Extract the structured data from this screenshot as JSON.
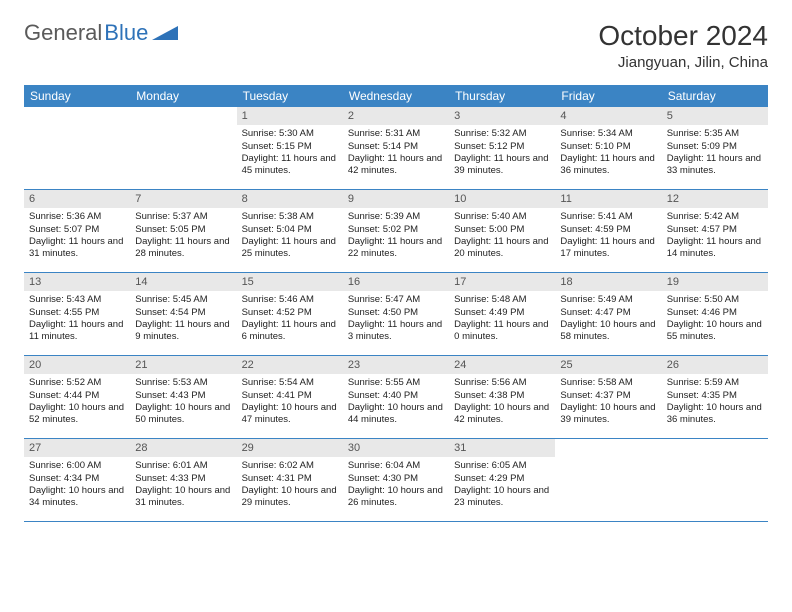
{
  "brand": {
    "part1": "General",
    "part2": "Blue"
  },
  "title": "October 2024",
  "location": "Jiangyuan, Jilin, China",
  "colors": {
    "header_bg": "#3b84c4",
    "header_fg": "#ffffff",
    "daynum_bg": "#e8e8e8",
    "daynum_fg": "#555555",
    "border": "#3b84c4",
    "logo_gray": "#5a5a5a",
    "logo_blue": "#2e72b8"
  },
  "day_names": [
    "Sunday",
    "Monday",
    "Tuesday",
    "Wednesday",
    "Thursday",
    "Friday",
    "Saturday"
  ],
  "weeks": [
    [
      null,
      null,
      {
        "n": "1",
        "sr": "5:30 AM",
        "ss": "5:15 PM",
        "dl": "11 hours and 45 minutes."
      },
      {
        "n": "2",
        "sr": "5:31 AM",
        "ss": "5:14 PM",
        "dl": "11 hours and 42 minutes."
      },
      {
        "n": "3",
        "sr": "5:32 AM",
        "ss": "5:12 PM",
        "dl": "11 hours and 39 minutes."
      },
      {
        "n": "4",
        "sr": "5:34 AM",
        "ss": "5:10 PM",
        "dl": "11 hours and 36 minutes."
      },
      {
        "n": "5",
        "sr": "5:35 AM",
        "ss": "5:09 PM",
        "dl": "11 hours and 33 minutes."
      }
    ],
    [
      {
        "n": "6",
        "sr": "5:36 AM",
        "ss": "5:07 PM",
        "dl": "11 hours and 31 minutes."
      },
      {
        "n": "7",
        "sr": "5:37 AM",
        "ss": "5:05 PM",
        "dl": "11 hours and 28 minutes."
      },
      {
        "n": "8",
        "sr": "5:38 AM",
        "ss": "5:04 PM",
        "dl": "11 hours and 25 minutes."
      },
      {
        "n": "9",
        "sr": "5:39 AM",
        "ss": "5:02 PM",
        "dl": "11 hours and 22 minutes."
      },
      {
        "n": "10",
        "sr": "5:40 AM",
        "ss": "5:00 PM",
        "dl": "11 hours and 20 minutes."
      },
      {
        "n": "11",
        "sr": "5:41 AM",
        "ss": "4:59 PM",
        "dl": "11 hours and 17 minutes."
      },
      {
        "n": "12",
        "sr": "5:42 AM",
        "ss": "4:57 PM",
        "dl": "11 hours and 14 minutes."
      }
    ],
    [
      {
        "n": "13",
        "sr": "5:43 AM",
        "ss": "4:55 PM",
        "dl": "11 hours and 11 minutes."
      },
      {
        "n": "14",
        "sr": "5:45 AM",
        "ss": "4:54 PM",
        "dl": "11 hours and 9 minutes."
      },
      {
        "n": "15",
        "sr": "5:46 AM",
        "ss": "4:52 PM",
        "dl": "11 hours and 6 minutes."
      },
      {
        "n": "16",
        "sr": "5:47 AM",
        "ss": "4:50 PM",
        "dl": "11 hours and 3 minutes."
      },
      {
        "n": "17",
        "sr": "5:48 AM",
        "ss": "4:49 PM",
        "dl": "11 hours and 0 minutes."
      },
      {
        "n": "18",
        "sr": "5:49 AM",
        "ss": "4:47 PM",
        "dl": "10 hours and 58 minutes."
      },
      {
        "n": "19",
        "sr": "5:50 AM",
        "ss": "4:46 PM",
        "dl": "10 hours and 55 minutes."
      }
    ],
    [
      {
        "n": "20",
        "sr": "5:52 AM",
        "ss": "4:44 PM",
        "dl": "10 hours and 52 minutes."
      },
      {
        "n": "21",
        "sr": "5:53 AM",
        "ss": "4:43 PM",
        "dl": "10 hours and 50 minutes."
      },
      {
        "n": "22",
        "sr": "5:54 AM",
        "ss": "4:41 PM",
        "dl": "10 hours and 47 minutes."
      },
      {
        "n": "23",
        "sr": "5:55 AM",
        "ss": "4:40 PM",
        "dl": "10 hours and 44 minutes."
      },
      {
        "n": "24",
        "sr": "5:56 AM",
        "ss": "4:38 PM",
        "dl": "10 hours and 42 minutes."
      },
      {
        "n": "25",
        "sr": "5:58 AM",
        "ss": "4:37 PM",
        "dl": "10 hours and 39 minutes."
      },
      {
        "n": "26",
        "sr": "5:59 AM",
        "ss": "4:35 PM",
        "dl": "10 hours and 36 minutes."
      }
    ],
    [
      {
        "n": "27",
        "sr": "6:00 AM",
        "ss": "4:34 PM",
        "dl": "10 hours and 34 minutes."
      },
      {
        "n": "28",
        "sr": "6:01 AM",
        "ss": "4:33 PM",
        "dl": "10 hours and 31 minutes."
      },
      {
        "n": "29",
        "sr": "6:02 AM",
        "ss": "4:31 PM",
        "dl": "10 hours and 29 minutes."
      },
      {
        "n": "30",
        "sr": "6:04 AM",
        "ss": "4:30 PM",
        "dl": "10 hours and 26 minutes."
      },
      {
        "n": "31",
        "sr": "6:05 AM",
        "ss": "4:29 PM",
        "dl": "10 hours and 23 minutes."
      },
      null,
      null
    ]
  ],
  "labels": {
    "sunrise": "Sunrise:",
    "sunset": "Sunset:",
    "daylight": "Daylight:"
  }
}
